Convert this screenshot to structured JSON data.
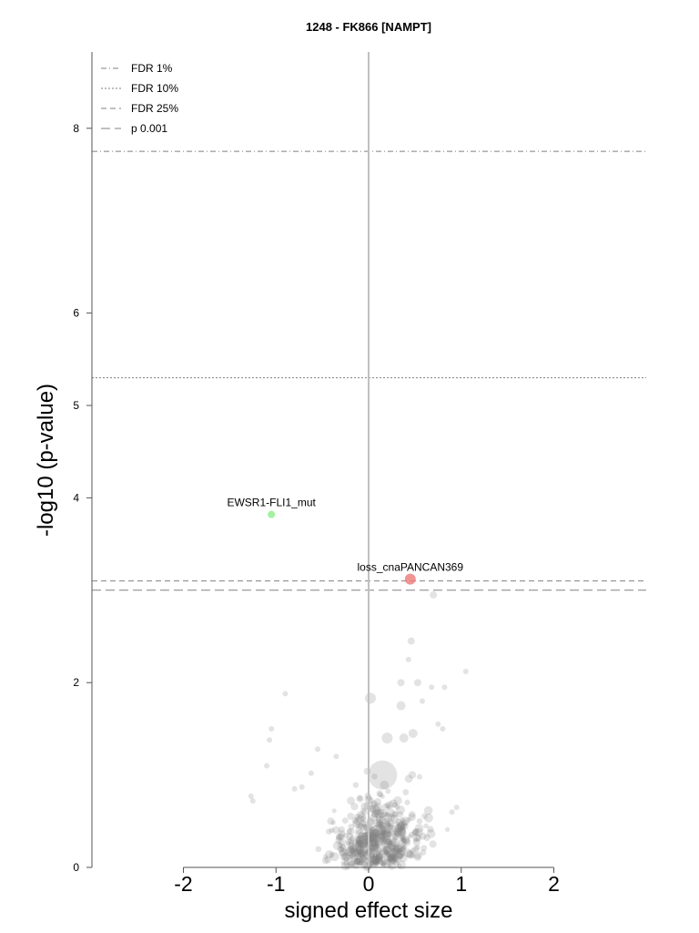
{
  "chart_data": {
    "type": "scatter",
    "title": "1248 - FK866 [NAMPT]",
    "xlabel": "signed effect size",
    "ylabel": "-log10 (p-value)",
    "xlim": [
      -3.0,
      3.0
    ],
    "ylim": [
      0,
      8.8
    ],
    "x_ticks": [
      "-2",
      "-1",
      "0",
      "1",
      "2"
    ],
    "y_ticks": [
      "0",
      "2",
      "4",
      "5",
      "6",
      "8"
    ],
    "grid": false,
    "legend_position": "top-left",
    "thresholds": [
      {
        "label": "FDR 1%",
        "y": 7.75,
        "style": "dashdot"
      },
      {
        "label": "FDR 10%",
        "y": 5.3,
        "style": "dotted"
      },
      {
        "label": "FDR 25%",
        "y": 3.1,
        "style": "dashed"
      },
      {
        "label": "p 0.001",
        "y": 3.0,
        "style": "longdash"
      }
    ],
    "highlighted": [
      {
        "label": "EWSR1-FLI1_mut",
        "x": -1.05,
        "y": 3.82,
        "color": "#90ee90",
        "size": 6
      },
      {
        "label": "loss_cnaPANCAN369",
        "x": 0.45,
        "y": 3.12,
        "color": "#f08080",
        "size": 10
      }
    ],
    "colors": {
      "background_points": "#808080",
      "axis": "#000000",
      "zero_line": "#c0c0c0",
      "threshold": "#808080"
    }
  }
}
